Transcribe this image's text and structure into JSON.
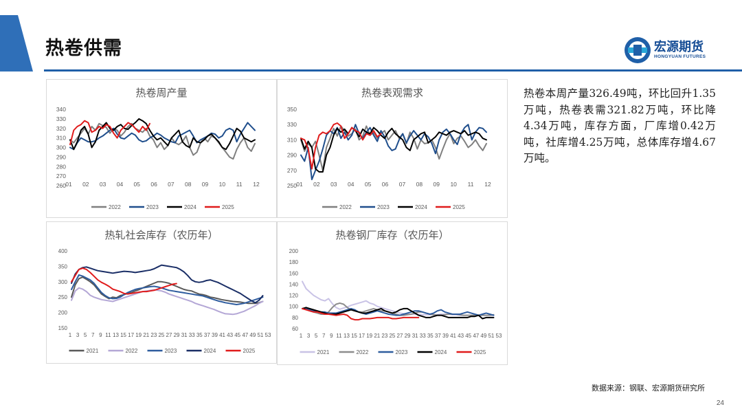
{
  "slide": {
    "title": "热卷供需",
    "summary": "热卷本周产量326.49吨，环比回升1.35万吨，热卷表需321.82万吨，环比降4.34万吨，库存方面，厂库增0.42万吨，社库增4.25万吨，总体库存增4.67万吨。",
    "source": "数据来源：钢联、宏源期货研究所",
    "page_number": "24",
    "logo": {
      "name_cn": "宏源期货",
      "name_en": "HONGYUAN FUTURES"
    },
    "colors": {
      "brand_blue": "#1f5fa8",
      "accent_tab": "#2f6fb8"
    }
  },
  "chart_data": [
    {
      "type": "line",
      "title": "热卷周产量",
      "x_ticks": [
        "01",
        "02",
        "03",
        "04",
        "05",
        "06",
        "07",
        "08",
        "09",
        "10",
        "11",
        "12"
      ],
      "y_ticks": [
        "340",
        "330",
        "320",
        "310",
        "300",
        "290",
        "280",
        "270",
        "260"
      ],
      "ylim": [
        260,
        340
      ],
      "series": [
        {
          "name": "2022",
          "color": "#7f7f7f",
          "values": [
            308,
            305,
            310,
            315,
            320,
            314,
            322,
            318,
            325,
            323,
            321,
            315,
            320,
            318,
            312,
            316,
            322,
            325,
            320,
            318,
            316,
            320,
            312,
            308,
            300,
            305,
            298,
            302,
            310,
            305,
            303,
            306,
            312,
            300,
            292,
            295,
            305,
            310,
            306,
            312,
            310,
            305,
            300,
            295,
            290,
            288,
            298,
            305,
            310,
            300,
            296,
            304
          ]
        },
        {
          "name": "2023",
          "color": "#1f4e8c",
          "values": [
            300,
            298,
            305,
            310,
            308,
            306,
            306,
            307,
            310,
            312,
            315,
            318,
            320,
            314,
            310,
            309,
            312,
            315,
            313,
            308,
            306,
            307,
            310,
            312,
            315,
            313,
            310,
            308,
            306,
            305,
            312,
            314,
            316,
            318,
            312,
            305,
            308,
            310,
            312,
            315,
            314,
            310,
            312,
            318,
            320,
            318,
            306,
            314,
            320,
            326,
            322,
            318
          ]
        },
        {
          "name": "2024",
          "color": "#000000",
          "values": [
            308,
            298,
            306,
            318,
            322,
            314,
            300,
            306,
            318,
            322,
            326,
            320,
            318,
            322,
            324,
            320,
            319,
            323,
            326,
            330,
            328,
            325,
            318,
            312,
            308,
            310,
            306,
            302,
            310,
            314,
            318,
            306,
            302,
            300,
            310,
            306,
            305,
            308,
            312,
            314,
            310,
            306,
            300,
            298,
            304,
            312,
            320,
            317,
            310,
            308,
            306,
            308
          ]
        },
        {
          "name": "2025",
          "color": "#e01b1b",
          "values": [
            303,
            318,
            322,
            324,
            328,
            326,
            316,
            318,
            322,
            320,
            324,
            322,
            315,
            310,
            318,
            322,
            326,
            324,
            320,
            316,
            322,
            318,
            325
          ]
        }
      ],
      "legend": [
        "2022",
        "2023",
        "2024",
        "2025"
      ]
    },
    {
      "type": "line",
      "title": "热卷表观需求",
      "x_ticks": [
        "01",
        "02",
        "03",
        "04",
        "05",
        "06",
        "07",
        "08",
        "09",
        "10",
        "11",
        "12"
      ],
      "y_ticks": [
        "350",
        "330",
        "310",
        "290",
        "270",
        "250"
      ],
      "ylim": [
        250,
        350
      ],
      "series": [
        {
          "name": "2022",
          "color": "#7f7f7f",
          "values": [
            310,
            295,
            305,
            300,
            308,
            290,
            270,
            300,
            312,
            325,
            315,
            328,
            322,
            315,
            318,
            324,
            310,
            315,
            328,
            316,
            320,
            312,
            318,
            322,
            310,
            316,
            322,
            312,
            318,
            305,
            320,
            312,
            298,
            310,
            305,
            306,
            310,
            300,
            285,
            298,
            310,
            318,
            305,
            312,
            315,
            308,
            300,
            304,
            310,
            302,
            296,
            305
          ]
        },
        {
          "name": "2023",
          "color": "#1f4e8c",
          "values": [
            290,
            282,
            300,
            258,
            270,
            282,
            298,
            316,
            322,
            318,
            326,
            312,
            320,
            310,
            316,
            330,
            318,
            312,
            320,
            326,
            316,
            308,
            322,
            314,
            302,
            296,
            298,
            310,
            318,
            306,
            315,
            322,
            316,
            310,
            318,
            314,
            305,
            292,
            310,
            320,
            324,
            318,
            310,
            304,
            318,
            326,
            330,
            310,
            320,
            326,
            325,
            320
          ]
        },
        {
          "name": "2024",
          "color": "#000000",
          "values": [
            312,
            298,
            308,
            300,
            272,
            268,
            268,
            290,
            300,
            316,
            325,
            320,
            324,
            318,
            326,
            322,
            314,
            324,
            320,
            318,
            326,
            322,
            316,
            312,
            320,
            325,
            318,
            314,
            310,
            300,
            296,
            310,
            314,
            318,
            320,
            306,
            310,
            314,
            320,
            318,
            316,
            320,
            322,
            320,
            318,
            322,
            316,
            318,
            320,
            318,
            312,
            310
          ]
        },
        {
          "name": "2025",
          "color": "#e01b1b",
          "values": [
            312,
            310,
            298,
            272,
            300,
            316,
            320,
            318,
            322,
            330,
            332,
            328,
            312,
            318,
            326,
            322,
            320,
            310,
            318,
            316,
            322,
            314,
            318
          ]
        }
      ],
      "legend": [
        "2022",
        "2023",
        "2024",
        "2025"
      ]
    },
    {
      "type": "line",
      "title": "热轧社会库存（农历年）",
      "x_ticks": [
        "1",
        "3",
        "5",
        "7",
        "9",
        "11",
        "13",
        "15",
        "17",
        "19",
        "21",
        "23",
        "25",
        "27",
        "29",
        "31",
        "33",
        "35",
        "37",
        "39",
        "41",
        "43",
        "45",
        "47",
        "49",
        "51",
        "53"
      ],
      "y_ticks": [
        "400",
        "350",
        "300",
        "250",
        "200",
        "150"
      ],
      "ylim": [
        150,
        400
      ],
      "series": [
        {
          "name": "2021",
          "color": "#595959",
          "values": [
            250,
            290,
            310,
            315,
            308,
            300,
            290,
            275,
            260,
            252,
            245,
            250,
            248,
            255,
            258,
            262,
            265,
            270,
            274,
            280,
            285,
            290,
            295,
            300,
            300,
            298,
            295,
            290,
            285,
            280,
            275,
            272,
            270,
            265,
            260,
            258,
            255,
            250,
            248,
            245,
            242,
            240,
            238,
            236,
            235,
            234,
            232,
            230,
            230,
            230,
            232,
            236
          ]
        },
        {
          "name": "2022",
          "color": "#b4a7d6",
          "values": [
            240,
            270,
            280,
            276,
            268,
            256,
            250,
            246,
            242,
            240,
            238,
            236,
            240,
            244,
            248,
            252,
            256,
            260,
            264,
            268,
            270,
            272,
            274,
            272,
            270,
            266,
            260,
            256,
            252,
            248,
            244,
            240,
            236,
            230,
            226,
            222,
            218,
            214,
            210,
            205,
            200,
            196,
            195,
            194,
            196,
            200,
            204,
            210,
            216,
            222,
            230,
            236
          ]
        },
        {
          "name": "2023",
          "color": "#2e5c9e",
          "values": [
            275,
            300,
            322,
            318,
            312,
            306,
            295,
            280,
            265,
            255,
            248,
            245,
            246,
            250,
            258,
            265,
            270,
            275,
            278,
            280,
            282,
            284,
            285,
            283,
            280,
            276,
            272,
            270,
            268,
            266,
            264,
            262,
            260,
            258,
            256,
            254,
            250,
            246,
            242,
            238,
            235,
            232,
            230,
            228,
            226,
            228,
            230,
            234,
            238,
            242,
            246,
            250
          ]
        },
        {
          "name": "2024",
          "color": "#1a2e66",
          "values": [
            295,
            325,
            340,
            346,
            348,
            344,
            340,
            336,
            334,
            332,
            330,
            328,
            330,
            332,
            334,
            333,
            332,
            330,
            332,
            334,
            336,
            338,
            342,
            348,
            354,
            352,
            350,
            348,
            346,
            340,
            332,
            320,
            306,
            300,
            298,
            300,
            304,
            306,
            302,
            298,
            292,
            286,
            280,
            274,
            268,
            262,
            254,
            246,
            238,
            232,
            240,
            255
          ]
        },
        {
          "name": "2025",
          "color": "#e01b1b",
          "values": [
            300,
            320,
            340,
            344,
            340,
            330,
            318,
            306,
            298,
            292,
            285,
            276,
            272,
            268,
            262,
            260,
            262,
            264,
            266,
            268,
            268,
            270,
            272,
            276,
            280,
            284,
            288,
            292,
            294
          ]
        }
      ],
      "legend": [
        "2021",
        "2022",
        "2023",
        "2024",
        "2025"
      ]
    },
    {
      "type": "line",
      "title": "热卷钢厂库存（农历年）",
      "x_ticks": [
        "1",
        "3",
        "5",
        "7",
        "9",
        "11",
        "13",
        "15",
        "17",
        "19",
        "21",
        "23",
        "25",
        "27",
        "29",
        "31",
        "33",
        "35",
        "37",
        "39",
        "41",
        "43",
        "45",
        "47",
        "49",
        "51",
        "53"
      ],
      "y_ticks": [
        "200",
        "180",
        "160",
        "140",
        "120",
        "100",
        "80",
        "60"
      ],
      "ylim": [
        60,
        200
      ],
      "series": [
        {
          "name": "2021",
          "color": "#c9c3e6",
          "values": [
            145,
            132,
            126,
            120,
            116,
            112,
            110,
            114,
            105,
            98,
            95,
            97,
            99,
            102,
            104,
            106,
            108,
            110,
            106,
            104,
            100,
            98,
            96,
            94,
            92,
            90,
            88,
            87,
            86,
            86,
            86,
            86,
            85,
            85,
            85,
            85,
            85,
            86,
            86,
            86,
            85,
            85,
            84,
            84,
            84,
            84,
            84,
            84,
            84,
            84,
            84,
            84
          ]
        },
        {
          "name": "2022",
          "color": "#8c8c8c",
          "values": [
            96,
            95,
            92,
            90,
            88,
            86,
            86,
            90,
            98,
            104,
            106,
            104,
            98,
            94,
            92,
            90,
            90,
            92,
            94,
            96,
            94,
            92,
            92,
            90,
            88,
            86,
            84,
            84,
            85,
            86,
            88,
            90,
            90,
            88,
            86,
            85,
            84,
            84,
            85,
            86,
            86,
            86,
            85,
            84,
            84,
            84,
            84,
            84,
            84,
            84,
            84,
            85
          ]
        },
        {
          "name": "2023",
          "color": "#2e5c9e",
          "values": [
            96,
            96,
            94,
            92,
            92,
            90,
            90,
            88,
            88,
            88,
            90,
            92,
            94,
            96,
            94,
            90,
            88,
            86,
            88,
            90,
            92,
            90,
            88,
            86,
            85,
            84,
            84,
            86,
            88,
            90,
            92,
            92,
            90,
            88,
            86,
            88,
            92,
            94,
            90,
            88,
            86,
            86,
            86,
            88,
            90,
            88,
            86,
            84,
            86,
            88,
            86,
            84
          ]
        },
        {
          "name": "2024",
          "color": "#000000",
          "values": [
            96,
            98,
            96,
            94,
            92,
            90,
            88,
            86,
            86,
            86,
            88,
            90,
            92,
            94,
            92,
            90,
            88,
            88,
            90,
            92,
            94,
            96,
            92,
            90,
            88,
            90,
            94,
            96,
            96,
            92,
            88,
            84,
            82,
            80,
            80,
            82,
            84,
            84,
            82,
            80,
            80,
            80,
            80,
            80,
            80,
            82,
            82,
            84,
            78,
            80,
            80,
            80
          ]
        },
        {
          "name": "2025",
          "color": "#e01b1b",
          "values": [
            96,
            94,
            92,
            90,
            90,
            88,
            86,
            86,
            85,
            84,
            85,
            86,
            84,
            78,
            76,
            76,
            78,
            78,
            78,
            79,
            80,
            80,
            80,
            80,
            78,
            78,
            79,
            80,
            80,
            80,
            80,
            80
          ]
        }
      ],
      "legend": [
        "2021",
        "2022",
        "2023",
        "2024",
        "2025"
      ]
    }
  ]
}
